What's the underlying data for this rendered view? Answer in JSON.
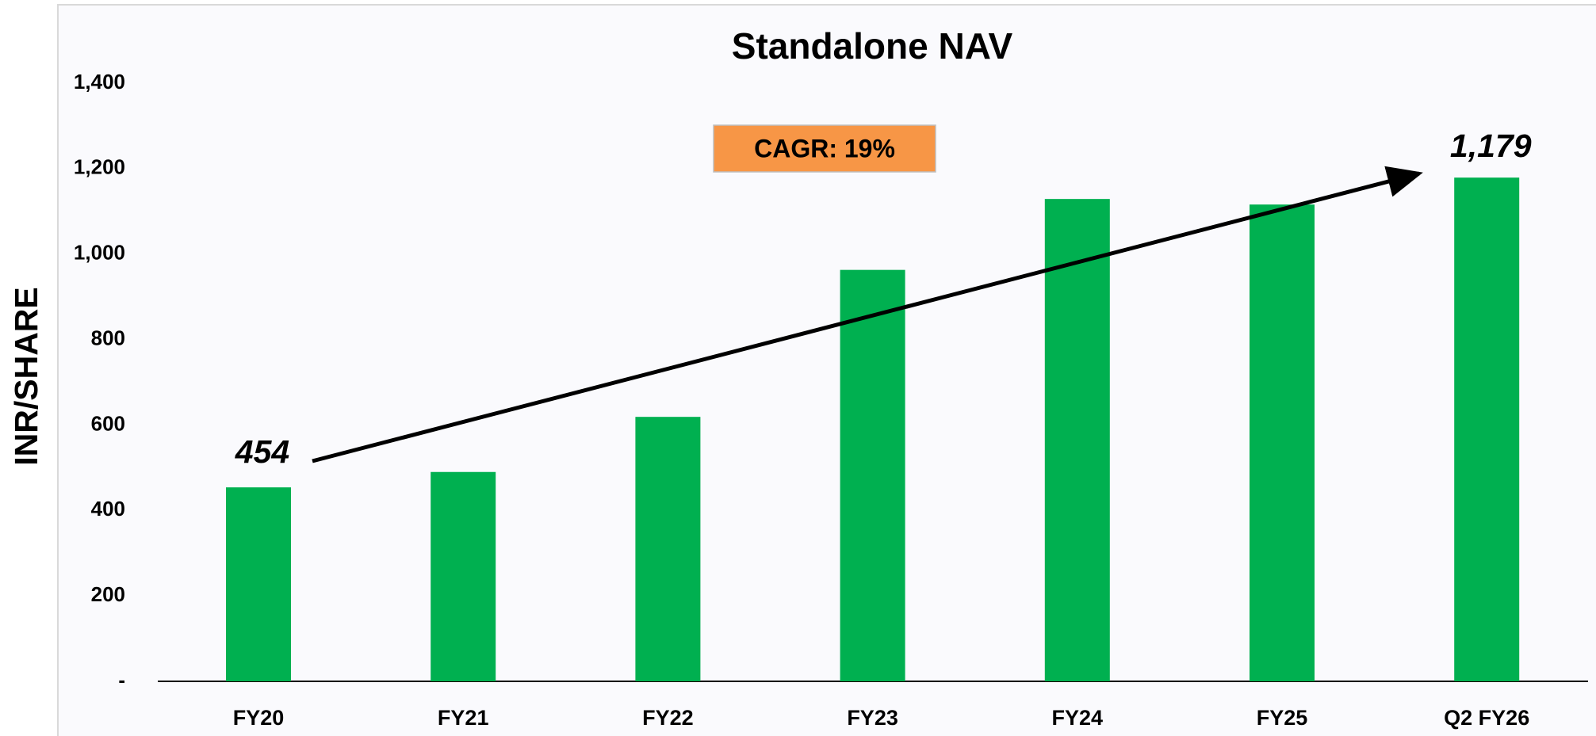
{
  "chart_data": {
    "type": "bar",
    "title": "Standalone NAV",
    "y_label": "INR/SHARE",
    "categories": [
      "FY20",
      "FY21",
      "FY22",
      "FY23",
      "FY24",
      "FY25",
      "Q2 FY26"
    ],
    "values": [
      454,
      490,
      619,
      963,
      1129,
      1116,
      1179
    ],
    "value_labels": [
      "454",
      null,
      null,
      null,
      null,
      null,
      "1,179"
    ],
    "color": "#00b050",
    "ylim": [
      0,
      1400
    ],
    "yticks": [
      {
        "value": 0,
        "label": "-"
      },
      200,
      400,
      600,
      800,
      {
        "value": 1000,
        "label": "1,000"
      },
      {
        "value": 1200,
        "label": "1,200"
      },
      {
        "value": 1400,
        "label": "1,400"
      }
    ],
    "grid": false,
    "annotation": "CAGR: 19%"
  }
}
